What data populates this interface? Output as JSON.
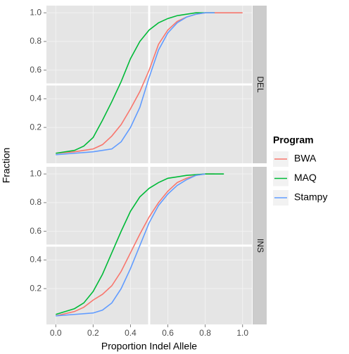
{
  "x_label": "Proportion Indel Allele",
  "y_label": "Fraction",
  "legend_title": "Program",
  "chart_data": [
    {
      "type": "line",
      "facet": "DEL",
      "xlim": [
        -0.05,
        1.05
      ],
      "ylim": [
        -0.05,
        1.05
      ],
      "xticks": [
        {
          "value": 0,
          "label": "0.0"
        },
        0.2,
        0.4,
        0.6,
        0.8,
        {
          "value": 1,
          "label": "1.0"
        }
      ],
      "yticks": [
        0.2,
        0.4,
        0.6,
        0.8,
        {
          "value": 1,
          "label": "1.0"
        }
      ],
      "grid_major_x": [
        0.5
      ],
      "grid_major_y": [
        0.5
      ],
      "series": [
        {
          "name": "BWA",
          "color": "#f8766d",
          "x": [
            0,
            0.1,
            0.2,
            0.25,
            0.3,
            0.35,
            0.4,
            0.45,
            0.5,
            0.55,
            0.6,
            0.65,
            0.7,
            0.75,
            0.8,
            0.9,
            1.0
          ],
          "values": [
            0.02,
            0.03,
            0.05,
            0.08,
            0.14,
            0.22,
            0.33,
            0.45,
            0.6,
            0.78,
            0.88,
            0.94,
            0.97,
            0.99,
            1.0,
            1.0,
            1.0
          ]
        },
        {
          "name": "MAQ",
          "color": "#00ba38",
          "x": [
            0,
            0.1,
            0.15,
            0.2,
            0.25,
            0.3,
            0.35,
            0.4,
            0.45,
            0.5,
            0.55,
            0.6,
            0.65,
            0.7,
            0.75,
            0.8,
            0.85
          ],
          "values": [
            0.02,
            0.04,
            0.07,
            0.13,
            0.25,
            0.38,
            0.52,
            0.68,
            0.8,
            0.88,
            0.93,
            0.96,
            0.98,
            0.99,
            1.0,
            1.0,
            1.0
          ]
        },
        {
          "name": "Stampy",
          "color": "#619cff",
          "x": [
            0,
            0.1,
            0.2,
            0.3,
            0.35,
            0.4,
            0.45,
            0.5,
            0.55,
            0.6,
            0.65,
            0.7,
            0.75,
            0.8,
            0.85
          ],
          "values": [
            0.01,
            0.02,
            0.03,
            0.05,
            0.1,
            0.2,
            0.34,
            0.55,
            0.74,
            0.86,
            0.93,
            0.97,
            0.99,
            1.0,
            1.0
          ]
        }
      ]
    },
    {
      "type": "line",
      "facet": "INS",
      "xlim": [
        -0.05,
        1.05
      ],
      "ylim": [
        -0.05,
        1.05
      ],
      "xticks": [
        {
          "value": 0,
          "label": "0.0"
        },
        0.2,
        0.4,
        0.6,
        0.8,
        {
          "value": 1,
          "label": "1.0"
        }
      ],
      "yticks": [
        0.2,
        0.4,
        0.6,
        0.8,
        {
          "value": 1,
          "label": "1.0"
        }
      ],
      "grid_major_x": [
        0.5
      ],
      "grid_major_y": [
        0.5
      ],
      "series": [
        {
          "name": "BWA",
          "color": "#f8766d",
          "x": [
            0,
            0.1,
            0.15,
            0.2,
            0.25,
            0.3,
            0.35,
            0.4,
            0.45,
            0.5,
            0.55,
            0.6,
            0.65,
            0.7,
            0.75,
            0.8,
            0.85
          ],
          "values": [
            0.01,
            0.04,
            0.07,
            0.12,
            0.16,
            0.22,
            0.32,
            0.45,
            0.58,
            0.7,
            0.8,
            0.88,
            0.94,
            0.97,
            0.99,
            1.0,
            1.0
          ]
        },
        {
          "name": "MAQ",
          "color": "#00ba38",
          "x": [
            0,
            0.1,
            0.15,
            0.2,
            0.25,
            0.3,
            0.35,
            0.4,
            0.45,
            0.5,
            0.55,
            0.6,
            0.7,
            0.8,
            0.9
          ],
          "values": [
            0.02,
            0.06,
            0.1,
            0.18,
            0.3,
            0.45,
            0.6,
            0.74,
            0.84,
            0.9,
            0.94,
            0.97,
            0.99,
            1.0,
            1.0
          ]
        },
        {
          "name": "Stampy",
          "color": "#619cff",
          "x": [
            0,
            0.1,
            0.2,
            0.25,
            0.3,
            0.35,
            0.4,
            0.45,
            0.5,
            0.55,
            0.6,
            0.65,
            0.7,
            0.75,
            0.8
          ],
          "values": [
            0.01,
            0.02,
            0.03,
            0.05,
            0.1,
            0.2,
            0.34,
            0.5,
            0.66,
            0.78,
            0.86,
            0.92,
            0.96,
            0.99,
            1.0
          ]
        }
      ]
    }
  ]
}
